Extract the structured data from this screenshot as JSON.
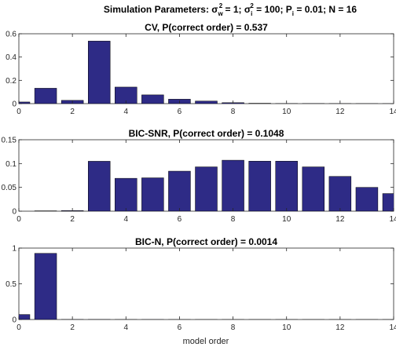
{
  "suptitle": {
    "prefix": "Simulation Parameters: σ",
    "w_sup": "2",
    "w_sub": "w",
    "mid1": " = 1; σ",
    "i_sup": "2",
    "i_sub": "i",
    "mid2": " = 100; P",
    "p_sub": "i",
    "suffix": " = 0.01; N = 16"
  },
  "bar_color": "#2e2b86",
  "xlabel": "model order",
  "chart_data": [
    {
      "type": "bar",
      "title": "CV, P(correct order) = 0.537",
      "categories": [
        0,
        1,
        2,
        3,
        4,
        5,
        6,
        7,
        8,
        9,
        10,
        11,
        12,
        13,
        14
      ],
      "values": [
        0.014,
        0.132,
        0.028,
        0.537,
        0.142,
        0.075,
        0.038,
        0.022,
        0.008,
        0.003,
        0.001,
        0.001,
        0.0005,
        0.0003,
        0.0002
      ],
      "xlim": [
        0,
        14
      ],
      "ylim": [
        0,
        0.6
      ],
      "xticks": [
        0,
        2,
        4,
        6,
        8,
        10,
        12,
        14
      ],
      "yticks": [
        0,
        0.2,
        0.4,
        0.6
      ],
      "ytick_labels": [
        "0",
        "0.2",
        "0.4",
        "0.6"
      ]
    },
    {
      "type": "bar",
      "title": "BIC-SNR, P(correct order) = 0.1048",
      "categories": [
        0,
        1,
        2,
        3,
        4,
        5,
        6,
        7,
        8,
        9,
        10,
        11,
        12,
        13,
        14
      ],
      "values": [
        0,
        0.0007,
        0.0012,
        0.1048,
        0.069,
        0.07,
        0.084,
        0.093,
        0.107,
        0.105,
        0.105,
        0.093,
        0.073,
        0.05,
        0.037
      ],
      "xlim": [
        0,
        14
      ],
      "ylim": [
        0,
        0.15
      ],
      "xticks": [
        0,
        2,
        4,
        6,
        8,
        10,
        12,
        14
      ],
      "yticks": [
        0,
        0.05,
        0.1,
        0.15
      ],
      "ytick_labels": [
        "0",
        "0.05",
        "0.1",
        "0.15"
      ]
    },
    {
      "type": "bar",
      "title": "BIC-N, P(correct order) = 0.0014",
      "categories": [
        0,
        1,
        2,
        3,
        4,
        5,
        6,
        7,
        8,
        9,
        10,
        11,
        12,
        13,
        14
      ],
      "values": [
        0.07,
        0.926,
        0.0014,
        0.0014,
        0.0005,
        0.0003,
        0.0002,
        0.0001,
        0.0001,
        0.0001,
        0.0001,
        0.0001,
        0.0001,
        0.0001,
        0.0001
      ],
      "xlim": [
        0,
        14
      ],
      "ylim": [
        0,
        1
      ],
      "xticks": [
        0,
        2,
        4,
        6,
        8,
        10,
        12,
        14
      ],
      "yticks": [
        0,
        0.5,
        1
      ],
      "ytick_labels": [
        "0",
        "0.5",
        "1"
      ]
    }
  ]
}
